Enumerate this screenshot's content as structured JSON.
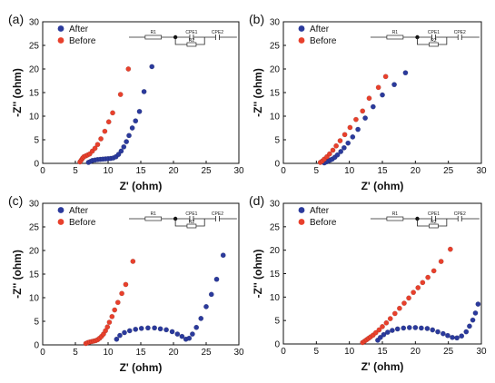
{
  "chart_data": [
    {
      "type": "scatter",
      "panel_label": "(a)",
      "xlabel": "Z' (ohm)",
      "ylabel": "-Z'' (ohm)",
      "xlim": [
        0,
        30
      ],
      "ylim": [
        0,
        30
      ],
      "xticks": [
        0,
        5,
        10,
        15,
        20,
        25,
        30
      ],
      "yticks": [
        0,
        5,
        10,
        15,
        20,
        25,
        30
      ],
      "grid": false,
      "legend_position": "top-left",
      "circuit_labels": [
        "R1",
        "CPE1",
        "CPE2",
        "R2"
      ],
      "series": [
        {
          "name": "After",
          "color": "#2b3a9c",
          "points": [
            [
              7.0,
              0.2
            ],
            [
              7.3,
              0.4
            ],
            [
              7.6,
              0.6
            ],
            [
              8.0,
              0.7
            ],
            [
              8.4,
              0.8
            ],
            [
              8.8,
              0.85
            ],
            [
              9.2,
              0.9
            ],
            [
              9.6,
              0.95
            ],
            [
              10.0,
              1.0
            ],
            [
              10.4,
              1.05
            ],
            [
              10.8,
              1.15
            ],
            [
              11.2,
              1.4
            ],
            [
              11.6,
              1.9
            ],
            [
              12.0,
              2.6
            ],
            [
              12.4,
              3.5
            ],
            [
              12.8,
              4.6
            ],
            [
              13.2,
              5.9
            ],
            [
              13.7,
              7.5
            ],
            [
              14.2,
              9.0
            ],
            [
              14.8,
              11.0
            ],
            [
              15.5,
              15.2
            ],
            [
              16.7,
              20.5
            ]
          ]
        },
        {
          "name": "Before",
          "color": "#e8402c",
          "points": [
            [
              5.7,
              0.3
            ],
            [
              5.9,
              0.7
            ],
            [
              6.1,
              1.1
            ],
            [
              6.3,
              1.4
            ],
            [
              6.6,
              1.6
            ],
            [
              6.9,
              1.8
            ],
            [
              7.2,
              2.0
            ],
            [
              7.6,
              2.6
            ],
            [
              8.0,
              3.2
            ],
            [
              8.4,
              4.0
            ],
            [
              8.9,
              5.2
            ],
            [
              9.5,
              6.8
            ],
            [
              10.1,
              8.8
            ],
            [
              10.7,
              10.7
            ],
            [
              11.9,
              14.6
            ],
            [
              13.1,
              20.0
            ]
          ]
        }
      ]
    },
    {
      "type": "scatter",
      "panel_label": "(b)",
      "xlabel": "Z' (ohm)",
      "ylabel": "-Z'' (ohm)",
      "xlim": [
        0,
        30
      ],
      "ylim": [
        0,
        30
      ],
      "xticks": [
        0,
        5,
        10,
        15,
        20,
        25,
        30
      ],
      "yticks": [
        0,
        5,
        10,
        15,
        20,
        25,
        30
      ],
      "grid": false,
      "legend_position": "top-left",
      "circuit_labels": [
        "R1",
        "CPE1",
        "CPE2",
        "R2"
      ],
      "series": [
        {
          "name": "After",
          "color": "#2b3a9c",
          "points": [
            [
              6.2,
              0.1
            ],
            [
              6.5,
              0.3
            ],
            [
              6.8,
              0.5
            ],
            [
              7.1,
              0.7
            ],
            [
              7.4,
              0.9
            ],
            [
              7.8,
              1.3
            ],
            [
              8.2,
              1.8
            ],
            [
              8.7,
              2.5
            ],
            [
              9.2,
              3.3
            ],
            [
              9.8,
              4.3
            ],
            [
              10.5,
              5.6
            ],
            [
              11.3,
              7.2
            ],
            [
              12.4,
              9.6
            ],
            [
              13.6,
              12.0
            ],
            [
              15.0,
              14.5
            ],
            [
              16.8,
              16.7
            ],
            [
              18.5,
              19.2
            ]
          ]
        },
        {
          "name": "Before",
          "color": "#e8402c",
          "points": [
            [
              5.6,
              0.2
            ],
            [
              5.9,
              0.5
            ],
            [
              6.2,
              0.9
            ],
            [
              6.6,
              1.4
            ],
            [
              7.0,
              2.0
            ],
            [
              7.5,
              2.8
            ],
            [
              8.0,
              3.7
            ],
            [
              8.6,
              4.8
            ],
            [
              9.3,
              6.1
            ],
            [
              10.1,
              7.6
            ],
            [
              11.0,
              9.3
            ],
            [
              12.0,
              11.1
            ],
            [
              13.0,
              13.8
            ],
            [
              14.4,
              16.1
            ],
            [
              15.5,
              18.4
            ]
          ]
        }
      ]
    },
    {
      "type": "scatter",
      "panel_label": "(c)",
      "xlabel": "Z' (ohm)",
      "ylabel": "-Z'' (ohm)",
      "xlim": [
        0,
        30
      ],
      "ylim": [
        0,
        30
      ],
      "xticks": [
        0,
        5,
        10,
        15,
        20,
        25,
        30
      ],
      "yticks": [
        0,
        5,
        10,
        15,
        20,
        25,
        30
      ],
      "grid": false,
      "legend_position": "top-left",
      "circuit_labels": [
        "R1",
        "CPE1",
        "CPE2",
        "R2"
      ],
      "series": [
        {
          "name": "After",
          "color": "#2b3a9c",
          "points": [
            [
              11.3,
              1.2
            ],
            [
              11.8,
              2.0
            ],
            [
              12.5,
              2.6
            ],
            [
              13.3,
              3.0
            ],
            [
              14.2,
              3.3
            ],
            [
              15.1,
              3.5
            ],
            [
              16.1,
              3.6
            ],
            [
              17.1,
              3.6
            ],
            [
              18.0,
              3.4
            ],
            [
              18.9,
              3.2
            ],
            [
              19.8,
              2.8
            ],
            [
              20.6,
              2.3
            ],
            [
              21.3,
              1.8
            ],
            [
              21.9,
              1.2
            ],
            [
              22.4,
              1.4
            ],
            [
              22.9,
              2.3
            ],
            [
              23.5,
              3.7
            ],
            [
              24.2,
              5.6
            ],
            [
              25.0,
              8.1
            ],
            [
              25.8,
              10.7
            ],
            [
              26.6,
              13.9
            ],
            [
              27.6,
              19.0
            ]
          ]
        },
        {
          "name": "Before",
          "color": "#e8402c",
          "points": [
            [
              6.6,
              0.3
            ],
            [
              6.9,
              0.5
            ],
            [
              7.2,
              0.6
            ],
            [
              7.5,
              0.7
            ],
            [
              7.8,
              0.8
            ],
            [
              8.1,
              0.9
            ],
            [
              8.4,
              1.1
            ],
            [
              8.7,
              1.4
            ],
            [
              9.0,
              1.8
            ],
            [
              9.3,
              2.3
            ],
            [
              9.6,
              3.0
            ],
            [
              9.9,
              3.8
            ],
            [
              10.2,
              4.8
            ],
            [
              10.6,
              6.0
            ],
            [
              11.0,
              7.4
            ],
            [
              11.5,
              9.0
            ],
            [
              12.1,
              10.9
            ],
            [
              12.7,
              12.8
            ],
            [
              13.8,
              17.7
            ]
          ]
        }
      ]
    },
    {
      "type": "scatter",
      "panel_label": "(d)",
      "xlabel": "Z' (ohm)",
      "ylabel": "-Z'' (ohm)",
      "xlim": [
        0,
        30
      ],
      "ylim": [
        0,
        30
      ],
      "xticks": [
        0,
        5,
        10,
        15,
        20,
        25,
        30
      ],
      "yticks": [
        0,
        5,
        10,
        15,
        20,
        25,
        30
      ],
      "grid": false,
      "legend_position": "top-left",
      "circuit_labels": [
        "R1",
        "CPE1",
        "CPE2",
        "R2"
      ],
      "series": [
        {
          "name": "After",
          "color": "#2b3a9c",
          "points": [
            [
              14.3,
              0.8
            ],
            [
              14.7,
              1.4
            ],
            [
              15.2,
              2.0
            ],
            [
              15.8,
              2.5
            ],
            [
              16.5,
              2.9
            ],
            [
              17.3,
              3.2
            ],
            [
              18.2,
              3.4
            ],
            [
              19.1,
              3.5
            ],
            [
              20.0,
              3.5
            ],
            [
              20.9,
              3.4
            ],
            [
              21.8,
              3.3
            ],
            [
              22.6,
              3.0
            ],
            [
              23.4,
              2.6
            ],
            [
              24.2,
              2.2
            ],
            [
              24.9,
              1.8
            ],
            [
              25.6,
              1.4
            ],
            [
              26.3,
              1.3
            ],
            [
              27.0,
              1.7
            ],
            [
              27.7,
              2.6
            ],
            [
              28.2,
              3.8
            ],
            [
              28.7,
              5.1
            ],
            [
              29.1,
              6.6
            ],
            [
              29.5,
              8.5
            ]
          ]
        },
        {
          "name": "Before",
          "color": "#e8402c",
          "points": [
            [
              12.0,
              0.3
            ],
            [
              12.3,
              0.6
            ],
            [
              12.6,
              0.9
            ],
            [
              12.9,
              1.2
            ],
            [
              13.2,
              1.5
            ],
            [
              13.6,
              1.9
            ],
            [
              14.0,
              2.4
            ],
            [
              14.5,
              3.0
            ],
            [
              15.0,
              3.7
            ],
            [
              15.6,
              4.5
            ],
            [
              16.2,
              5.4
            ],
            [
              16.9,
              6.5
            ],
            [
              17.6,
              7.6
            ],
            [
              18.3,
              8.7
            ],
            [
              19.0,
              9.8
            ],
            [
              19.7,
              11.0
            ],
            [
              20.4,
              12.0
            ],
            [
              21.1,
              13.1
            ],
            [
              21.9,
              14.2
            ],
            [
              22.8,
              15.6
            ],
            [
              23.9,
              17.6
            ],
            [
              25.3,
              20.2
            ]
          ]
        }
      ]
    }
  ]
}
